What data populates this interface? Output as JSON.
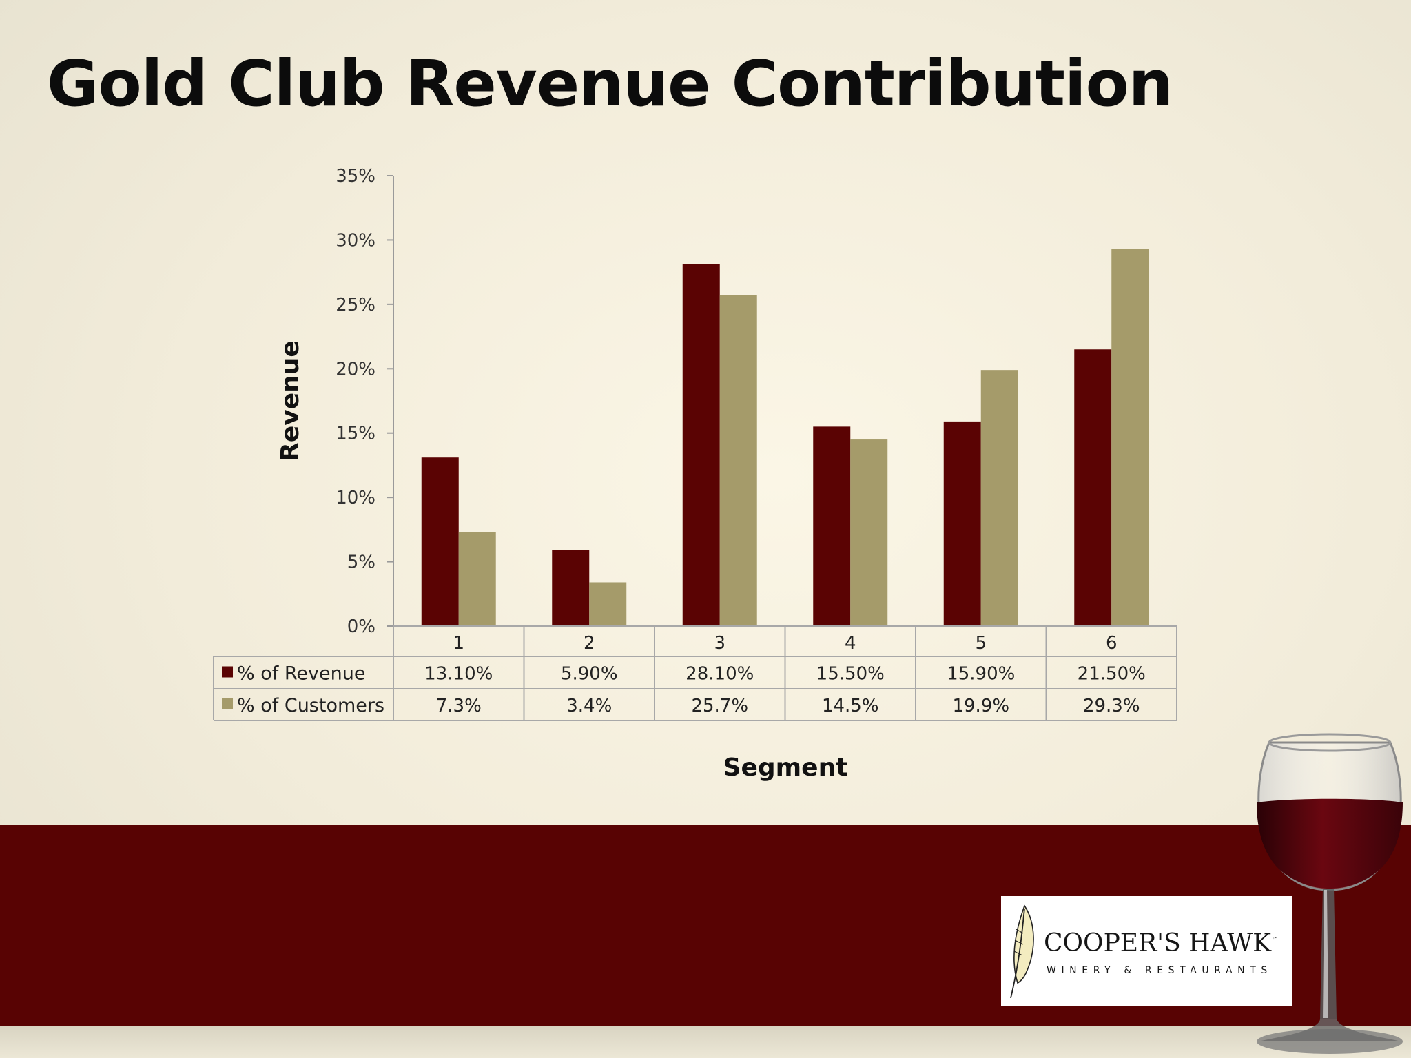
{
  "slide": {
    "title": "Gold Club Revenue Contribution"
  },
  "colors": {
    "revenue": "#5a0303",
    "customers": "#a59b6a",
    "band": "#580303"
  },
  "chart_data": {
    "type": "bar",
    "title": "",
    "xlabel": "Segment",
    "ylabel": "Revenue",
    "ylim": [
      0,
      0.35
    ],
    "yticks": [
      "0%",
      "5%",
      "10%",
      "15%",
      "20%",
      "25%",
      "30%",
      "35%"
    ],
    "categories": [
      "1",
      "2",
      "3",
      "4",
      "5",
      "6"
    ],
    "legend": "data-table",
    "grid": false,
    "series": [
      {
        "name": "% of Revenue",
        "values": [
          0.131,
          0.059,
          0.281,
          0.155,
          0.159,
          0.215
        ],
        "labels": [
          "13.10%",
          "5.90%",
          "28.10%",
          "15.50%",
          "15.90%",
          "21.50%"
        ]
      },
      {
        "name": "% of  Customers",
        "values": [
          0.073,
          0.034,
          0.257,
          0.145,
          0.199,
          0.293
        ],
        "labels": [
          "7.3%",
          "3.4%",
          "25.7%",
          "14.5%",
          "19.9%",
          "29.3%"
        ]
      }
    ]
  },
  "logo": {
    "brand": "COOPER'S HAWK",
    "trademark": "™",
    "subtitle": "WINERY & RESTAURANTS",
    "icon": "feather-icon"
  },
  "decor": {
    "glass_icon": "wine-glass-icon"
  }
}
